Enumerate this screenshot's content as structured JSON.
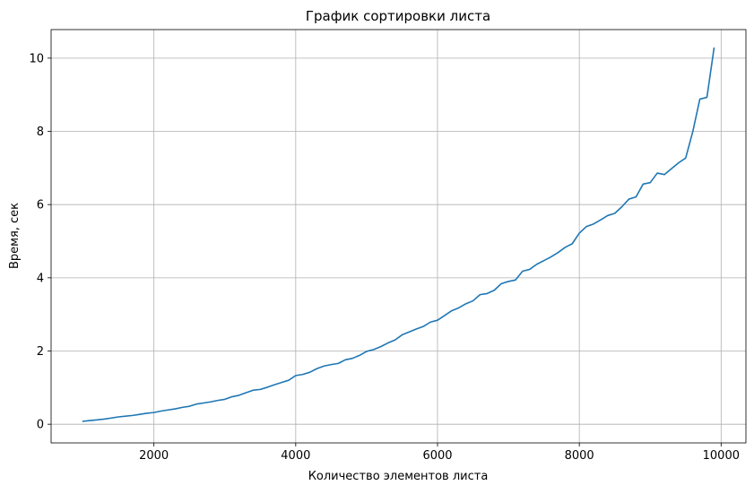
{
  "chart_data": {
    "type": "line",
    "title": "График сортировки листа",
    "xlabel": "Количество элементов листа",
    "ylabel": "Время, сек",
    "xlim": [
      550,
      10350
    ],
    "ylim": [
      -0.51,
      10.78
    ],
    "xticks": [
      2000,
      4000,
      6000,
      8000,
      10000
    ],
    "yticks": [
      0,
      2,
      4,
      6,
      8,
      10
    ],
    "xtick_labels": [
      "2000",
      "4000",
      "6000",
      "8000",
      "10000"
    ],
    "ytick_labels": [
      "0",
      "2",
      "4",
      "6",
      "8",
      "10"
    ],
    "grid": true,
    "colors": {
      "line": "#1f77b4",
      "grid": "#b0b0b0",
      "axis": "#000000"
    },
    "series": [
      {
        "x": [
          1000,
          1100,
          1200,
          1300,
          1400,
          1500,
          1600,
          1700,
          1800,
          1900,
          2000,
          2100,
          2200,
          2300,
          2400,
          2500,
          2600,
          2700,
          2800,
          2900,
          3000,
          3100,
          3200,
          3300,
          3400,
          3500,
          3600,
          3700,
          3800,
          3900,
          4000,
          4100,
          4200,
          4300,
          4400,
          4500,
          4600,
          4700,
          4800,
          4900,
          5000,
          5100,
          5200,
          5300,
          5400,
          5500,
          5600,
          5700,
          5800,
          5900,
          6000,
          6100,
          6200,
          6300,
          6400,
          6500,
          6600,
          6700,
          6800,
          6900,
          7000,
          7100,
          7200,
          7300,
          7400,
          7500,
          7600,
          7700,
          7800,
          7900,
          8000,
          8100,
          8200,
          8300,
          8400,
          8500,
          8600,
          8700,
          8800,
          8900,
          9000,
          9100,
          9200,
          9300,
          9400,
          9500,
          9600,
          9700,
          9800,
          9900
        ],
        "y": [
          0.08,
          0.1,
          0.12,
          0.14,
          0.17,
          0.2,
          0.22,
          0.24,
          0.27,
          0.3,
          0.32,
          0.36,
          0.39,
          0.42,
          0.46,
          0.49,
          0.55,
          0.58,
          0.61,
          0.65,
          0.68,
          0.75,
          0.79,
          0.86,
          0.93,
          0.95,
          1.01,
          1.08,
          1.14,
          1.2,
          1.33,
          1.36,
          1.42,
          1.52,
          1.59,
          1.63,
          1.66,
          1.76,
          1.8,
          1.88,
          1.99,
          2.04,
          2.12,
          2.22,
          2.3,
          2.44,
          2.52,
          2.6,
          2.67,
          2.79,
          2.84,
          2.97,
          3.1,
          3.18,
          3.29,
          3.37,
          3.54,
          3.57,
          3.66,
          3.84,
          3.9,
          3.94,
          4.18,
          4.23,
          4.37,
          4.47,
          4.57,
          4.69,
          4.83,
          4.93,
          5.22,
          5.4,
          5.47,
          5.58,
          5.7,
          5.76,
          5.94,
          6.15,
          6.21,
          6.56,
          6.6,
          6.86,
          6.82,
          6.98,
          7.14,
          7.27,
          7.99,
          8.88,
          8.93,
          10.27
        ]
      }
    ]
  }
}
